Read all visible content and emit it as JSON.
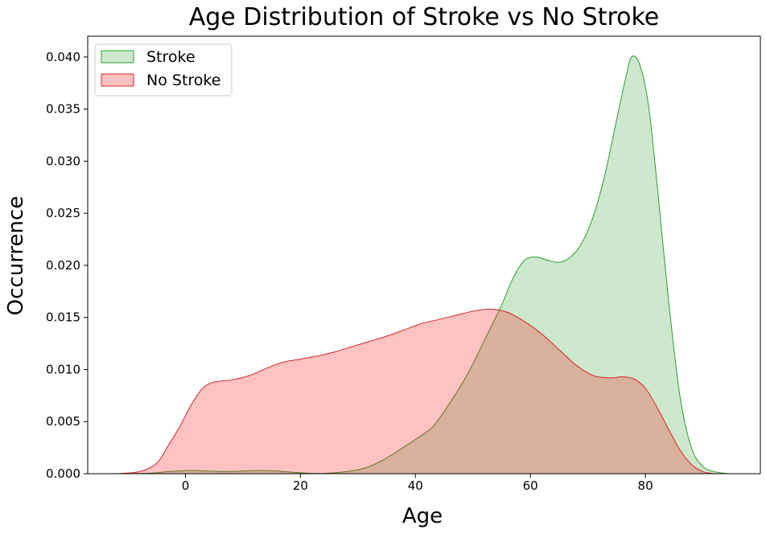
{
  "chart_data": {
    "type": "area",
    "title": "Age Distribution of Stroke vs No Stroke",
    "xlabel": "Age",
    "ylabel": "Occurrence",
    "xlim": [
      -17,
      100
    ],
    "ylim": [
      0,
      0.042
    ],
    "x_ticks": [
      0,
      20,
      40,
      60,
      80
    ],
    "x_tick_labels": [
      "0",
      "20",
      "40",
      "60",
      "80"
    ],
    "y_ticks": [
      0,
      0.005,
      0.01,
      0.015,
      0.02,
      0.025,
      0.03,
      0.035,
      0.04
    ],
    "y_tick_labels": [
      "0.000",
      "0.005",
      "0.010",
      "0.015",
      "0.020",
      "0.025",
      "0.030",
      "0.035",
      "0.040"
    ],
    "grid": false,
    "legend_position": "top-left",
    "series": [
      {
        "name": "Stroke",
        "color": "#2ca02c",
        "fill": "rgba(44,160,44,0.24)",
        "points": [
          [
            -12,
            0
          ],
          [
            -6,
            5e-05
          ],
          [
            -3,
            0.0002
          ],
          [
            0,
            0.0003
          ],
          [
            2,
            0.0003
          ],
          [
            4,
            0.00025
          ],
          [
            7,
            0.0002
          ],
          [
            10,
            0.00025
          ],
          [
            13,
            0.0003
          ],
          [
            16,
            0.00025
          ],
          [
            19,
            0.00012
          ],
          [
            22,
            3e-05
          ],
          [
            25,
            5e-05
          ],
          [
            28,
            0.0002
          ],
          [
            31,
            0.0005
          ],
          [
            34,
            0.0012
          ],
          [
            37,
            0.0022
          ],
          [
            40,
            0.0033
          ],
          [
            43,
            0.0045
          ],
          [
            46,
            0.0068
          ],
          [
            49,
            0.0095
          ],
          [
            52,
            0.0128
          ],
          [
            55,
            0.0162
          ],
          [
            57,
            0.0188
          ],
          [
            59,
            0.0205
          ],
          [
            61,
            0.0208
          ],
          [
            63,
            0.0205
          ],
          [
            65,
            0.0203
          ],
          [
            67,
            0.0208
          ],
          [
            69,
            0.0222
          ],
          [
            71,
            0.0248
          ],
          [
            73,
            0.0288
          ],
          [
            75,
            0.034
          ],
          [
            76.5,
            0.0378
          ],
          [
            77.6,
            0.04
          ],
          [
            79,
            0.0393
          ],
          [
            80.5,
            0.0355
          ],
          [
            82,
            0.028
          ],
          [
            84,
            0.0168
          ],
          [
            86,
            0.0075
          ],
          [
            88,
            0.0025
          ],
          [
            90,
            0.0007
          ],
          [
            92,
            0.0002
          ],
          [
            94.5,
            0
          ]
        ]
      },
      {
        "name": "No Stroke",
        "color": "#d62728",
        "fill": "rgba(255,0,0,0.24)",
        "points": [
          [
            -12,
            0
          ],
          [
            -8,
            0.0002
          ],
          [
            -5,
            0.001
          ],
          [
            -3,
            0.0027
          ],
          [
            -1,
            0.0045
          ],
          [
            1,
            0.0066
          ],
          [
            3,
            0.0082
          ],
          [
            5,
            0.0088
          ],
          [
            8,
            0.009
          ],
          [
            11,
            0.0094
          ],
          [
            14,
            0.0101
          ],
          [
            17,
            0.0107
          ],
          [
            20,
            0.011
          ],
          [
            23,
            0.0113
          ],
          [
            26,
            0.0117
          ],
          [
            29,
            0.0122
          ],
          [
            32,
            0.0127
          ],
          [
            35,
            0.0132
          ],
          [
            38,
            0.0138
          ],
          [
            41,
            0.0144
          ],
          [
            44,
            0.0148
          ],
          [
            47,
            0.0152
          ],
          [
            50,
            0.0156
          ],
          [
            53,
            0.0158
          ],
          [
            56,
            0.0155
          ],
          [
            59,
            0.0146
          ],
          [
            62,
            0.0134
          ],
          [
            65,
            0.0119
          ],
          [
            68,
            0.0104
          ],
          [
            71,
            0.0094
          ],
          [
            74,
            0.0092
          ],
          [
            76,
            0.0093
          ],
          [
            78,
            0.0091
          ],
          [
            80,
            0.0082
          ],
          [
            82,
            0.0064
          ],
          [
            84,
            0.0043
          ],
          [
            86,
            0.0023
          ],
          [
            88,
            0.0009
          ],
          [
            90,
            0.0002
          ],
          [
            92,
            0
          ]
        ]
      }
    ]
  }
}
